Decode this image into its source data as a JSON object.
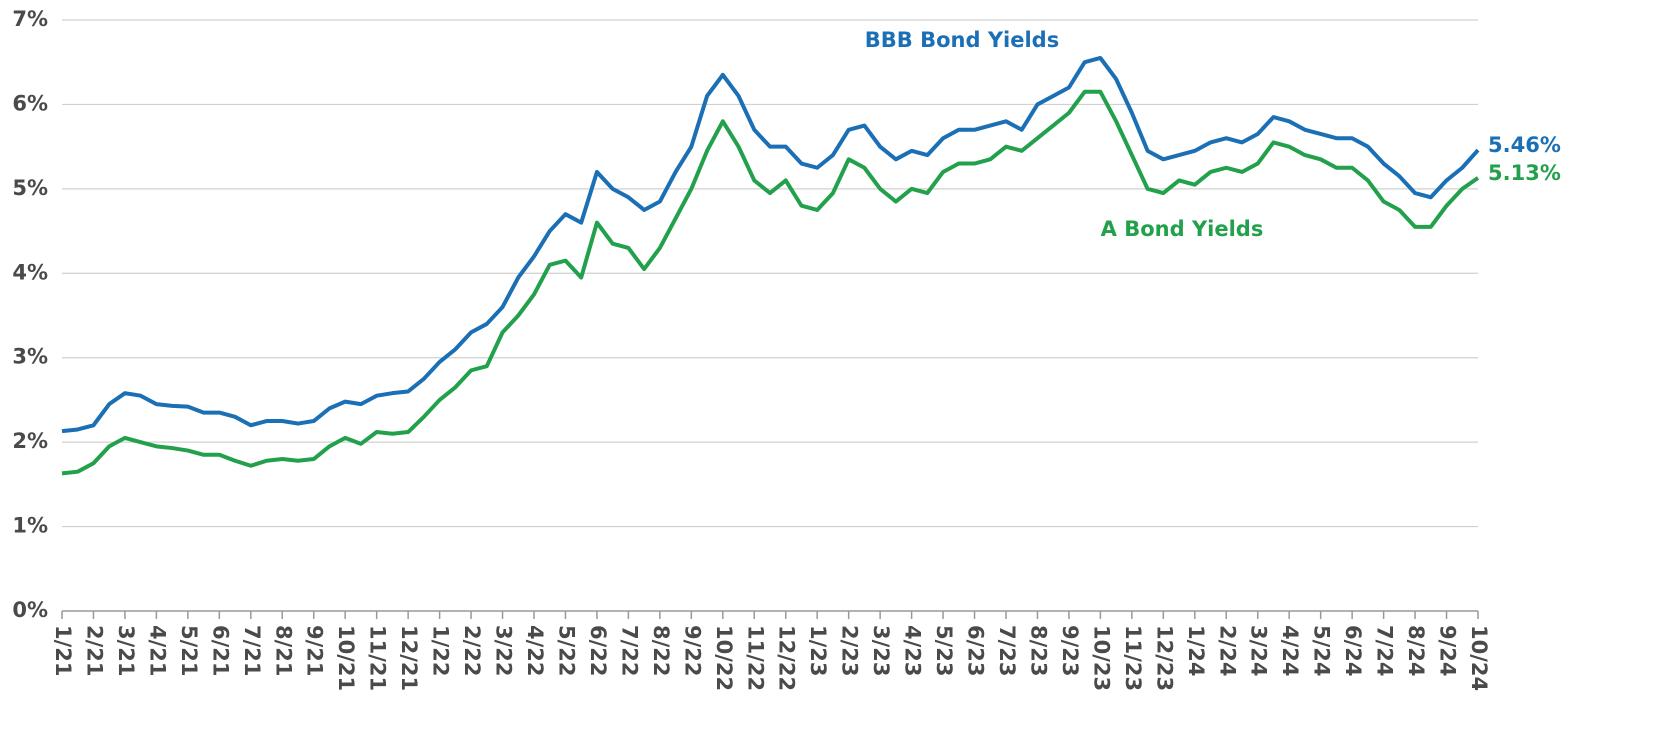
{
  "chart_data": {
    "type": "line",
    "categories": [
      "1/21",
      null,
      "2/21",
      null,
      "3/21",
      null,
      "4/21",
      null,
      "5/21",
      null,
      "6/21",
      null,
      "7/21",
      null,
      "8/21",
      null,
      "9/21",
      null,
      "10/21",
      null,
      "11/21",
      null,
      "12/21",
      null,
      "1/22",
      null,
      "2/22",
      null,
      "3/22",
      null,
      "4/22",
      null,
      "5/22",
      null,
      "6/22",
      null,
      "7/22",
      null,
      "8/22",
      null,
      "9/22",
      null,
      "10/22",
      null,
      "11/22",
      null,
      "12/22",
      null,
      "1/23",
      null,
      "2/23",
      null,
      "3/23",
      null,
      "4/23",
      null,
      "5/23",
      null,
      "6/23",
      null,
      "7/23",
      null,
      "8/23",
      null,
      "9/23",
      null,
      "10/23",
      null,
      "11/23",
      null,
      "12/23",
      null,
      "1/24",
      null,
      "2/24",
      null,
      "3/24",
      null,
      "4/24",
      null,
      "5/24",
      null,
      "6/24",
      null,
      "7/24",
      null,
      "8/24",
      null,
      "9/24",
      null,
      "10/24"
    ],
    "series": [
      {
        "name": "BBB Bond Yields",
        "color": "#1a6fb5",
        "values": [
          2.13,
          2.15,
          2.2,
          2.45,
          2.58,
          2.55,
          2.45,
          2.43,
          2.42,
          2.35,
          2.35,
          2.3,
          2.2,
          2.25,
          2.25,
          2.22,
          2.25,
          2.4,
          2.48,
          2.45,
          2.55,
          2.58,
          2.6,
          2.75,
          2.95,
          3.1,
          3.3,
          3.4,
          3.6,
          3.95,
          4.2,
          4.5,
          4.7,
          4.6,
          5.2,
          5.0,
          4.9,
          4.75,
          4.85,
          5.2,
          5.5,
          6.1,
          6.35,
          6.1,
          5.7,
          5.5,
          5.5,
          5.3,
          5.25,
          5.4,
          5.7,
          5.75,
          5.5,
          5.35,
          5.45,
          5.4,
          5.6,
          5.7,
          5.7,
          5.75,
          5.8,
          5.7,
          6.0,
          6.1,
          6.2,
          6.5,
          6.55,
          6.3,
          5.9,
          5.45,
          5.35,
          5.4,
          5.45,
          5.55,
          5.6,
          5.55,
          5.65,
          5.85,
          5.8,
          5.7,
          5.65,
          5.6,
          5.6,
          5.5,
          5.3,
          5.15,
          4.95,
          4.9,
          5.1,
          5.25,
          5.46
        ],
        "value_labels": [
          null,
          null,
          null,
          null,
          null,
          null,
          null,
          null,
          null,
          null,
          null,
          null,
          null,
          null,
          null,
          null,
          null,
          null,
          null,
          null,
          null,
          null,
          null,
          null,
          null,
          null,
          null,
          null,
          null,
          null,
          null,
          null,
          null,
          null,
          null,
          null,
          null,
          null,
          null,
          null,
          null,
          null,
          null,
          null,
          null,
          null,
          null,
          null,
          null,
          null,
          null,
          null,
          null,
          null,
          null,
          null,
          null,
          null,
          null,
          null,
          null,
          null,
          null,
          null,
          null,
          null,
          null,
          null,
          null,
          null,
          null,
          null,
          null,
          null,
          null,
          null,
          null,
          null,
          null,
          null,
          null,
          null,
          null,
          null,
          null,
          null,
          null,
          null,
          null,
          null,
          "5.46%"
        ]
      },
      {
        "name": "A Bond Yields",
        "color": "#22a04b",
        "values": [
          1.63,
          1.65,
          1.75,
          1.95,
          2.05,
          2.0,
          1.95,
          1.93,
          1.9,
          1.85,
          1.85,
          1.78,
          1.72,
          1.78,
          1.8,
          1.78,
          1.8,
          1.95,
          2.05,
          1.98,
          2.12,
          2.1,
          2.12,
          2.3,
          2.5,
          2.65,
          2.85,
          2.9,
          3.3,
          3.5,
          3.75,
          4.1,
          4.15,
          3.95,
          4.6,
          4.35,
          4.3,
          4.05,
          4.3,
          4.65,
          5.0,
          5.45,
          5.8,
          5.5,
          5.1,
          4.95,
          5.1,
          4.8,
          4.75,
          4.95,
          5.35,
          5.25,
          5.0,
          4.85,
          5.0,
          4.95,
          5.2,
          5.3,
          5.3,
          5.35,
          5.5,
          5.45,
          5.6,
          5.75,
          5.9,
          6.15,
          6.15,
          5.8,
          5.4,
          5.0,
          4.95,
          5.1,
          5.05,
          5.2,
          5.25,
          5.2,
          5.3,
          5.55,
          5.5,
          5.4,
          5.35,
          5.25,
          5.25,
          5.1,
          4.85,
          4.75,
          4.55,
          4.55,
          4.8,
          5.0,
          5.13
        ],
        "value_labels": [
          null,
          null,
          null,
          null,
          null,
          null,
          null,
          null,
          null,
          null,
          null,
          null,
          null,
          null,
          null,
          null,
          null,
          null,
          null,
          null,
          null,
          null,
          null,
          null,
          null,
          null,
          null,
          null,
          null,
          null,
          null,
          null,
          null,
          null,
          null,
          null,
          null,
          null,
          null,
          null,
          null,
          null,
          null,
          null,
          null,
          null,
          null,
          null,
          null,
          null,
          null,
          null,
          null,
          null,
          null,
          null,
          null,
          null,
          null,
          null,
          null,
          null,
          null,
          null,
          null,
          null,
          null,
          null,
          null,
          null,
          null,
          null,
          null,
          null,
          null,
          null,
          null,
          null,
          null,
          null,
          null,
          null,
          null,
          null,
          null,
          null,
          null,
          null,
          null,
          null,
          "5.13%"
        ]
      }
    ],
    "ylim": [
      0,
      7
    ],
    "yticks": [
      {
        "value": 0,
        "label": "0%"
      },
      {
        "value": 1,
        "label": "1%"
      },
      {
        "value": 2,
        "label": "2%"
      },
      {
        "value": 3,
        "label": "3%"
      },
      {
        "value": 4,
        "label": "4%"
      },
      {
        "value": 5,
        "label": "5%"
      },
      {
        "value": 6,
        "label": "6%"
      },
      {
        "value": 7,
        "label": "7%"
      }
    ],
    "grid": true
  }
}
